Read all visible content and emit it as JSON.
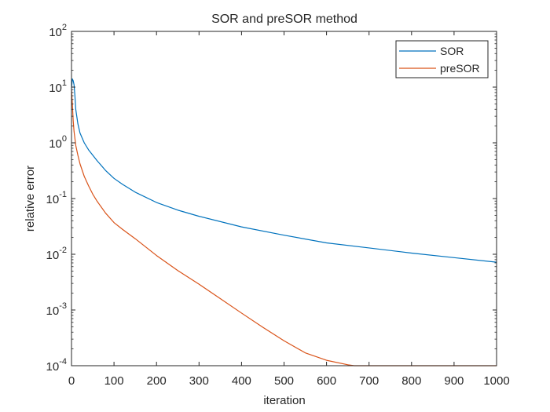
{
  "chart_data": {
    "type": "line",
    "title": "SOR and preSOR method",
    "xlabel": "iteration",
    "ylabel": "relative error",
    "xlim": [
      0,
      1000
    ],
    "ylim": [
      0.0001,
      100
    ],
    "yscale": "log",
    "x_ticks": [
      "0",
      "100",
      "200",
      "300",
      "400",
      "500",
      "600",
      "700",
      "800",
      "900",
      "1000"
    ],
    "y_ticks": [
      {
        "base": "10",
        "exp": "2"
      },
      {
        "base": "10",
        "exp": "1"
      },
      {
        "base": "10",
        "exp": "0"
      },
      {
        "base": "10",
        "exp": "-1"
      },
      {
        "base": "10",
        "exp": "-2"
      },
      {
        "base": "10",
        "exp": "-3"
      },
      {
        "base": "10",
        "exp": "-4"
      }
    ],
    "grid": false,
    "legend_position": "top-right",
    "series": [
      {
        "name": "SOR",
        "color": "#0072BD",
        "x": [
          0,
          2,
          4,
          6,
          8,
          10,
          15,
          20,
          30,
          40,
          50,
          60,
          80,
          100,
          120,
          150,
          200,
          250,
          300,
          400,
          500,
          600,
          700,
          800,
          900,
          1000
        ],
        "y": [
          9.5,
          14,
          13,
          11,
          7,
          4,
          2.2,
          1.5,
          1.0,
          0.75,
          0.6,
          0.48,
          0.32,
          0.23,
          0.18,
          0.13,
          0.085,
          0.062,
          0.048,
          0.031,
          0.022,
          0.016,
          0.013,
          0.0105,
          0.0087,
          0.0072
        ]
      },
      {
        "name": "preSOR",
        "color": "#D95319",
        "x": [
          0,
          2,
          4,
          6,
          8,
          10,
          15,
          20,
          30,
          40,
          50,
          60,
          80,
          100,
          120,
          150,
          200,
          250,
          300,
          350,
          400,
          450,
          500,
          550,
          600,
          650,
          665,
          700,
          800,
          900,
          1000
        ],
        "y": [
          9,
          5,
          2.5,
          1.6,
          1.2,
          0.9,
          0.6,
          0.42,
          0.25,
          0.17,
          0.12,
          0.09,
          0.055,
          0.037,
          0.028,
          0.019,
          0.0095,
          0.0051,
          0.0029,
          0.0016,
          0.00088,
          0.00049,
          0.00028,
          0.00017,
          0.000125,
          0.000104,
          0.0001,
          0.0001,
          0.0001,
          0.0001,
          0.0001
        ]
      }
    ]
  }
}
